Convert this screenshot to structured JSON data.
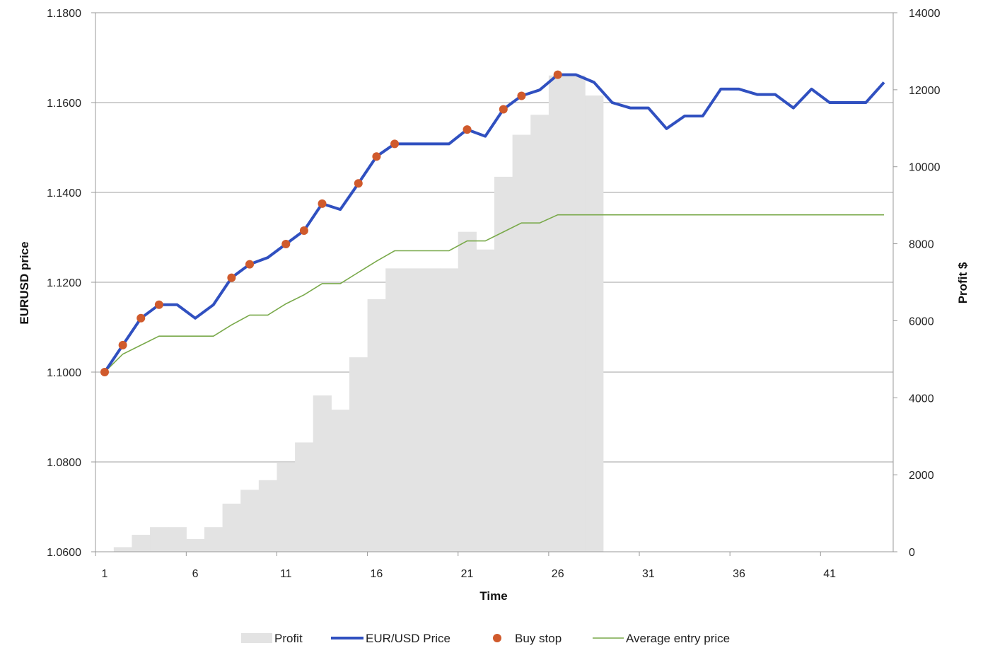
{
  "chart_data": {
    "type": "line",
    "xlabel": "Time",
    "ylabel_left": "EURUSD  price",
    "ylabel_right": "Profit $",
    "x_ticks": [
      1,
      6,
      11,
      16,
      21,
      26,
      31,
      36,
      41
    ],
    "y_left_ticks": [
      "1.0600",
      "1.0800",
      "1.1000",
      "1.1200",
      "1.1400",
      "1.1600",
      "1.1800"
    ],
    "y_left_range": [
      1.06,
      1.18
    ],
    "y_right_ticks": [
      "0",
      "2000",
      "4000",
      "6000",
      "8000",
      "10000",
      "12000",
      "14000"
    ],
    "y_right_range": [
      0,
      14000
    ],
    "x_range": [
      1,
      44
    ],
    "grid": "horizontal",
    "legend_position": "bottom",
    "colors": {
      "profit": "#e3e3e3",
      "price": "#3050c0",
      "buy_stop": "#d05a2c",
      "avg_entry": "#79a94a",
      "grid": "#a0a0a0",
      "axis": "#999999"
    },
    "legend": [
      "Profit",
      "EUR/USD Price",
      "Buy stop",
      "Average entry price"
    ],
    "series": [
      {
        "name": "EUR/USD Price",
        "x": [
          1,
          2,
          3,
          4,
          5,
          6,
          7,
          8,
          9,
          10,
          11,
          12,
          13,
          14,
          15,
          16,
          17,
          18,
          19,
          20,
          21,
          22,
          23,
          24,
          25,
          26,
          27,
          28,
          29,
          30,
          31,
          32,
          33,
          34,
          35,
          36,
          37,
          38,
          39,
          40,
          41,
          42,
          43,
          44
        ],
        "values": [
          1.1,
          1.106,
          1.112,
          1.115,
          1.115,
          1.112,
          1.115,
          1.121,
          1.124,
          1.1255,
          1.1285,
          1.1315,
          1.1375,
          1.1362,
          1.142,
          1.148,
          1.1508,
          1.1508,
          1.1508,
          1.1508,
          1.154,
          1.1525,
          1.1585,
          1.1615,
          1.1628,
          1.1662,
          1.1662,
          1.1645,
          1.16,
          1.1588,
          1.1588,
          1.1542,
          1.157,
          1.157,
          1.163,
          1.163,
          1.1618,
          1.1618,
          1.1588,
          1.163,
          1.16,
          1.16,
          1.16,
          1.1645
        ]
      },
      {
        "name": "Buy stop",
        "x": [
          1,
          2,
          3,
          4,
          8,
          9,
          11,
          12,
          13,
          15,
          16,
          17,
          21,
          23,
          24,
          26
        ],
        "values": [
          1.1,
          1.106,
          1.112,
          1.115,
          1.121,
          1.124,
          1.1285,
          1.1315,
          1.1375,
          1.142,
          1.148,
          1.1508,
          1.154,
          1.1585,
          1.1615,
          1.1662
        ]
      },
      {
        "name": "Average entry price",
        "x": [
          1,
          2,
          3,
          4,
          5,
          6,
          7,
          8,
          9,
          10,
          11,
          12,
          13,
          14,
          15,
          16,
          17,
          18,
          19,
          20,
          21,
          22,
          23,
          24,
          25,
          26,
          27,
          28,
          29,
          30,
          31,
          32,
          33,
          34,
          35,
          36,
          37,
          38,
          39,
          40,
          41,
          42,
          43,
          44
        ],
        "values": [
          1.1,
          1.104,
          1.106,
          1.108,
          1.108,
          1.108,
          1.108,
          1.1105,
          1.1127,
          1.1127,
          1.1152,
          1.1172,
          1.1197,
          1.1197,
          1.1222,
          1.1247,
          1.127,
          1.127,
          1.127,
          1.127,
          1.1292,
          1.1292,
          1.1312,
          1.1332,
          1.1332,
          1.135,
          1.135,
          1.135,
          1.135,
          1.135,
          1.135,
          1.135,
          1.135,
          1.135,
          1.135,
          1.135,
          1.135,
          1.135,
          1.135,
          1.135,
          1.135,
          1.135,
          1.135,
          1.135
        ]
      },
      {
        "name": "Profit",
        "axis": "right",
        "x": [
          1,
          2,
          3,
          4,
          5,
          6,
          7,
          8,
          9,
          10,
          11,
          12,
          13,
          14,
          15,
          16,
          17,
          18,
          19,
          20,
          21,
          22,
          23,
          24,
          25,
          26,
          27,
          28
        ],
        "values": [
          0,
          120,
          440,
          640,
          640,
          330,
          640,
          1250,
          1610,
          1860,
          2330,
          2840,
          4060,
          3690,
          5050,
          6560,
          7360,
          7360,
          7360,
          7360,
          8310,
          7850,
          9740,
          10830,
          11350,
          12370,
          12370,
          11850
        ]
      }
    ]
  }
}
